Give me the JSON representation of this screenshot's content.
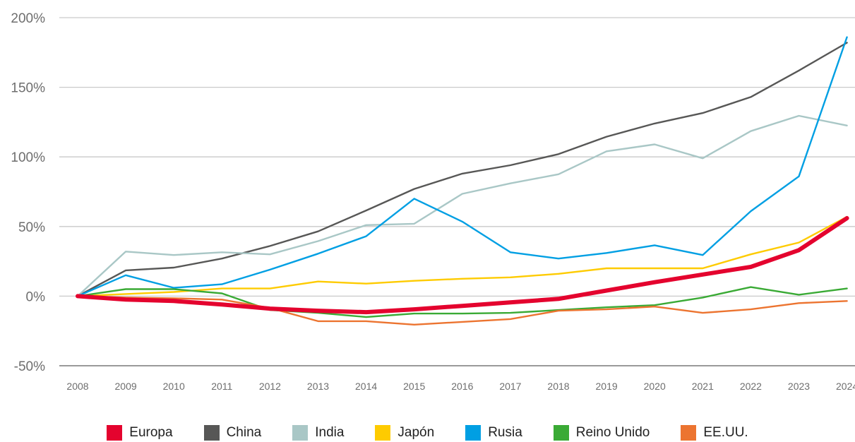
{
  "chart_data": {
    "type": "line",
    "title": "",
    "xlabel": "",
    "ylabel": "",
    "ylim": [
      -50,
      200
    ],
    "yticks": [
      "200%",
      "150%",
      "100%",
      "50%",
      "0%",
      "-50%"
    ],
    "ytick_values": [
      200,
      150,
      100,
      50,
      0,
      -50
    ],
    "x": [
      "2008",
      "2009",
      "2010",
      "2011",
      "2012",
      "2013",
      "2014",
      "2015",
      "2016",
      "2017",
      "2018",
      "2019",
      "2020",
      "2021",
      "2022",
      "2023",
      "2024"
    ],
    "grid": "horizontal",
    "legend_position": "bottom",
    "series": [
      {
        "name": "Europa",
        "color": "#e4032e",
        "emphasis": true,
        "values": [
          0,
          -2.5,
          -3.5,
          -6,
          -9,
          -10.5,
          -11.5,
          -9.5,
          -7,
          -4.5,
          -2,
          4,
          10,
          15.5,
          21,
          33,
          56
        ]
      },
      {
        "name": "China",
        "color": "#575756",
        "values": [
          0,
          18.5,
          20.5,
          27,
          36,
          46.5,
          61.5,
          77,
          88,
          94,
          102,
          114.5,
          124,
          131.5,
          143,
          162,
          182
        ]
      },
      {
        "name": "India",
        "color": "#a9c7c6",
        "values": [
          0,
          32,
          29.5,
          31.5,
          30,
          39.5,
          51,
          52,
          73.5,
          81,
          87.5,
          104,
          109,
          99,
          118.5,
          129.5,
          122.5
        ]
      },
      {
        "name": "Japón",
        "color": "#fecb00",
        "values": [
          0,
          1.5,
          3,
          5.5,
          5.5,
          10.5,
          9,
          11,
          12.5,
          13.5,
          16,
          20,
          20,
          20,
          30,
          38.5,
          57
        ]
      },
      {
        "name": "Rusia",
        "color": "#009fe3",
        "values": [
          0,
          15,
          6,
          8.5,
          19,
          30.5,
          43,
          70,
          53.5,
          31.5,
          27,
          31,
          36.5,
          29.5,
          61,
          86,
          186
        ]
      },
      {
        "name": "Reino Unido",
        "color": "#3aaa35",
        "values": [
          0,
          5,
          5,
          2,
          -10,
          -12,
          -15,
          -12.5,
          -12.5,
          -12,
          -10,
          -8,
          -6.5,
          -1,
          6.5,
          1,
          5.5
        ]
      },
      {
        "name": "EE.UU.",
        "color": "#ec7430",
        "values": [
          0,
          -1,
          -1.5,
          -2.5,
          -8.5,
          -18,
          -18,
          -20.5,
          -18.5,
          -16.5,
          -10.5,
          -9.5,
          -7.5,
          -12,
          -9.5,
          -5,
          -3.5
        ]
      }
    ]
  }
}
